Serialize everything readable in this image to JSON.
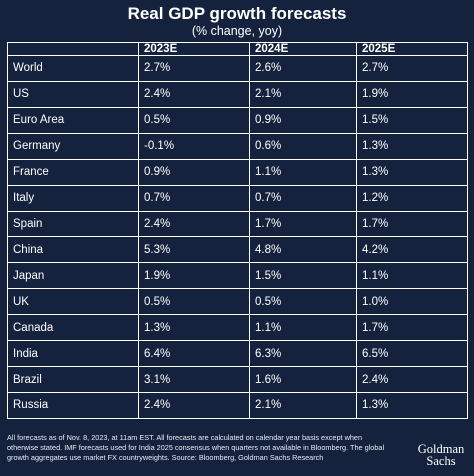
{
  "chart_data": {
    "type": "table",
    "title": "Real GDP growth forecasts",
    "subtitle": "(% change, yoy)",
    "columns": [
      "",
      "2023E",
      "2024E",
      "2025E"
    ],
    "rows": [
      [
        "World",
        "2.7%",
        "2.6%",
        "2.7%"
      ],
      [
        "US",
        "2.4%",
        "2.1%",
        "1.9%"
      ],
      [
        "Euro Area",
        "0.5%",
        "0.9%",
        "1.5%"
      ],
      [
        "Germany",
        "-0.1%",
        "0.6%",
        "1.3%"
      ],
      [
        "France",
        "0.9%",
        "1.1%",
        "1.3%"
      ],
      [
        "Italy",
        "0.7%",
        "0.7%",
        "1.2%"
      ],
      [
        "Spain",
        "2.4%",
        "1.7%",
        "1.7%"
      ],
      [
        "China",
        "5.3%",
        "4.8%",
        "4.2%"
      ],
      [
        "Japan",
        "1.9%",
        "1.5%",
        "1.1%"
      ],
      [
        "UK",
        "0.5%",
        "0.5%",
        "1.0%"
      ],
      [
        "Canada",
        "1.3%",
        "1.1%",
        "1.7%"
      ],
      [
        "India",
        "6.4%",
        "6.3%",
        "6.5%"
      ],
      [
        "Brazil",
        "3.1%",
        "1.6%",
        "2.4%"
      ],
      [
        "Russia",
        "2.4%",
        "2.1%",
        "1.3%"
      ]
    ]
  },
  "footnote": "All forecasts as of Nov. 8, 2023, at 11am EST. All forecasts are calculated on calendar year basis except when otherwise stated. IMF forecasts used for India 2025 consensus when quarters not available in Bloomberg. The global growth aggregates use market FX countryweights. Source: Bloomberg, Goldman Sachs Research",
  "logo": {
    "line1": "Goldman",
    "line2": "Sachs"
  },
  "colors": {
    "background": "#15223d",
    "text": "#ffffff",
    "grid": "#ffffff"
  }
}
